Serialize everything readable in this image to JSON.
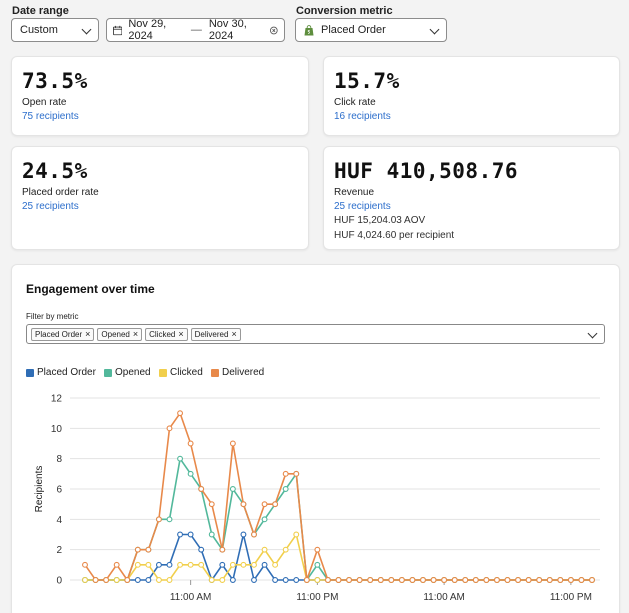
{
  "filters": {
    "date_range_label": "Date range",
    "date_range_value": "Custom",
    "date_start": "Nov 29, 2024",
    "date_sep": "—",
    "date_end": "Nov 30, 2024",
    "conversion_label": "Conversion metric",
    "conversion_value": "Placed Order"
  },
  "stats": {
    "open": {
      "value": "73.5%",
      "label": "Open rate",
      "link": "75 recipients"
    },
    "click": {
      "value": "15.7%",
      "label": "Click rate",
      "link": "16 recipients"
    },
    "placed": {
      "value": "24.5%",
      "label": "Placed order rate",
      "link": "25 recipients"
    },
    "revenue": {
      "value": "HUF 410,508.76",
      "label": "Revenue",
      "link": "25 recipients",
      "aov": "HUF 15,204.03 AOV",
      "per_recipient": "HUF 4,024.60 per recipient"
    }
  },
  "engagement": {
    "title": "Engagement over time",
    "filter_label": "Filter by metric",
    "chips": [
      "Placed Order",
      "Opened",
      "Clicked",
      "Delivered"
    ],
    "chip_remove": "×"
  },
  "colors": {
    "placed": "#2f6db5",
    "opened": "#52b89b",
    "clicked": "#f1cf4c",
    "delivered": "#e8894a",
    "link": "#2c6ecb"
  },
  "chart_data": {
    "type": "line",
    "ylabel": "Recipients",
    "ylim": [
      0,
      12
    ],
    "yticks": [
      0,
      2,
      4,
      6,
      8,
      10,
      12
    ],
    "xticks": [
      {
        "index": 10,
        "label": "11:00 AM"
      },
      {
        "index": 22,
        "label": "11:00 PM"
      },
      {
        "index": 34,
        "label": "11:00 AM"
      },
      {
        "index": 46,
        "label": "11:00 PM"
      }
    ],
    "grid": true,
    "legend": "top-left",
    "series": [
      {
        "name": "Placed Order",
        "color": "#2f6db5",
        "values": [
          0,
          0,
          0,
          0,
          0,
          0,
          0,
          1,
          1,
          3,
          3,
          2,
          0,
          1,
          0,
          3,
          0,
          1,
          0,
          0,
          0,
          0,
          0,
          0,
          0,
          0,
          0,
          0,
          0,
          0,
          0,
          0,
          0,
          0,
          0,
          0,
          0,
          0,
          0,
          0,
          0,
          0,
          0,
          0,
          0,
          0,
          0,
          0,
          0
        ]
      },
      {
        "name": "Opened",
        "color": "#52b89b",
        "values": [
          0,
          0,
          0,
          0,
          0,
          2,
          2,
          4,
          4,
          8,
          7,
          6,
          3,
          2,
          6,
          5,
          3,
          4,
          5,
          6,
          7,
          0,
          1,
          0,
          0,
          0,
          0,
          0,
          0,
          0,
          0,
          0,
          0,
          0,
          0,
          0,
          0,
          0,
          0,
          0,
          0,
          0,
          0,
          0,
          0,
          0,
          0,
          0,
          0
        ]
      },
      {
        "name": "Clicked",
        "color": "#f1cf4c",
        "values": [
          0,
          0,
          0,
          0,
          0,
          1,
          1,
          0,
          0,
          1,
          1,
          1,
          0,
          0,
          1,
          1,
          1,
          2,
          1,
          2,
          3,
          0,
          0,
          0,
          0,
          0,
          0,
          0,
          0,
          0,
          0,
          0,
          0,
          0,
          0,
          0,
          0,
          0,
          0,
          0,
          0,
          0,
          0,
          0,
          0,
          0,
          0,
          0,
          0
        ]
      },
      {
        "name": "Delivered",
        "color": "#e8894a",
        "values": [
          1,
          0,
          0,
          1,
          0,
          2,
          2,
          4,
          10,
          11,
          9,
          6,
          5,
          2,
          9,
          5,
          3,
          5,
          5,
          7,
          7,
          0,
          2,
          0,
          0,
          0,
          0,
          0,
          0,
          0,
          0,
          0,
          0,
          0,
          0,
          0,
          0,
          0,
          0,
          0,
          0,
          0,
          0,
          0,
          0,
          0,
          0,
          0,
          0
        ]
      }
    ]
  }
}
